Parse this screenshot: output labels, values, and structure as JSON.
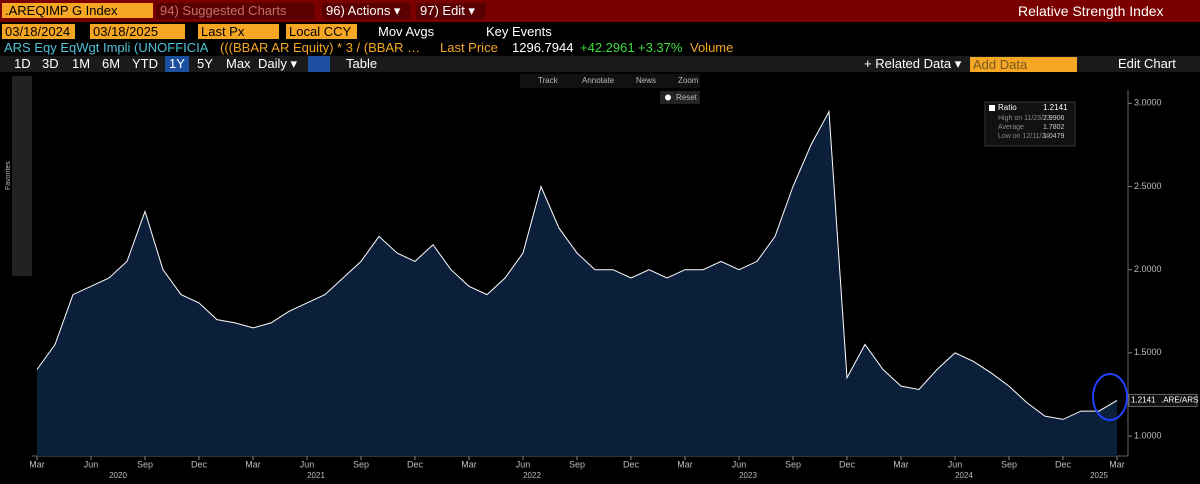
{
  "toolbar": {
    "security": ".AREQIMP G Index",
    "suggested": "94) Suggested Charts",
    "actions": "96) Actions ▾",
    "edit": "97) Edit ▾",
    "study": "Relative Strength Index"
  },
  "settings": {
    "start": "03/18/2024",
    "end": "03/18/2025",
    "field": "Last Px",
    "currency": "Local CCY",
    "mov_avgs": "Mov Avgs",
    "key_events": "Key Events"
  },
  "info": {
    "name": "ARS Eqy EqWgt Impli (UNOFFICIA",
    "formula": "(((BBAR AR Equity) * 3 / (BBAR …",
    "last_price_label": "Last Price",
    "last_price": "1296.7944",
    "change": "+42.2961",
    "change_pct": "+3.37%",
    "volume": "Volume"
  },
  "periods": [
    "1D",
    "3D",
    "1M",
    "6M",
    "YTD",
    "1Y",
    "5Y",
    "Max"
  ],
  "frequency": "Daily ▾",
  "table": "Table",
  "related": "+ Related Data ▾",
  "add_data": "Add Data",
  "edit_chart": "Edit Chart",
  "chart_tools": [
    "Track",
    "Annotate",
    "News",
    "Zoom"
  ],
  "reset": "Reset",
  "sidebar_label": "Favorites",
  "chart_data": {
    "type": "line",
    "x": [
      "2020-03",
      "2020-04",
      "2020-05",
      "2020-06",
      "2020-07",
      "2020-08",
      "2020-09",
      "2020-10",
      "2020-11",
      "2020-12",
      "2021-01",
      "2021-02",
      "2021-03",
      "2021-04",
      "2021-05",
      "2021-06",
      "2021-07",
      "2021-08",
      "2021-09",
      "2021-10",
      "2021-11",
      "2021-12",
      "2022-01",
      "2022-02",
      "2022-03",
      "2022-04",
      "2022-05",
      "2022-06",
      "2022-07",
      "2022-08",
      "2022-09",
      "2022-10",
      "2022-11",
      "2022-12",
      "2023-01",
      "2023-02",
      "2023-03",
      "2023-04",
      "2023-05",
      "2023-06",
      "2023-07",
      "2023-08",
      "2023-09",
      "2023-10",
      "2023-11",
      "2023-12",
      "2024-01",
      "2024-02",
      "2024-03",
      "2024-04",
      "2024-05",
      "2024-06",
      "2024-07",
      "2024-08",
      "2024-09",
      "2024-10",
      "2024-11",
      "2024-12",
      "2025-01",
      "2025-02",
      "2025-03"
    ],
    "series": [
      {
        "name": "Ratio",
        "color": "#ffffff",
        "fill": "#0c1f3a",
        "values": [
          1.4,
          1.55,
          1.85,
          1.9,
          1.95,
          2.05,
          2.35,
          2.0,
          1.85,
          1.8,
          1.7,
          1.68,
          1.65,
          1.68,
          1.75,
          1.8,
          1.85,
          1.95,
          2.05,
          2.2,
          2.1,
          2.05,
          2.15,
          2.0,
          1.9,
          1.85,
          1.95,
          2.1,
          2.5,
          2.25,
          2.1,
          2.0,
          2.0,
          1.95,
          2.0,
          1.95,
          2.0,
          2.0,
          2.05,
          2.0,
          2.05,
          2.2,
          2.5,
          2.75,
          2.95,
          1.35,
          1.55,
          1.4,
          1.3,
          1.28,
          1.4,
          1.5,
          1.45,
          1.38,
          1.3,
          1.2,
          1.12,
          1.1,
          1.15,
          1.15,
          1.2141
        ]
      }
    ],
    "ylim": [
      0.88,
      3.08
    ],
    "yticks": [
      {
        "value": 1,
        "label": "1.0000"
      },
      {
        "value": 1.5,
        "label": "1.5000"
      },
      {
        "value": 2,
        "label": "2.0000"
      },
      {
        "value": 2.5,
        "label": "2.5000"
      },
      {
        "value": 3,
        "label": "3.0000"
      }
    ],
    "xlim": [
      "2020-03",
      "2025-03"
    ],
    "xticks": [
      {
        "value": "2020-03",
        "label": "Mar"
      },
      {
        "value": "2020-06",
        "label": "Jun"
      },
      {
        "value": "2020-09",
        "label": "Sep"
      },
      {
        "value": "2020-12",
        "label": "Dec"
      },
      {
        "value": "2021-03",
        "label": "Mar"
      },
      {
        "value": "2021-06",
        "label": "Jun"
      },
      {
        "value": "2021-09",
        "label": "Sep"
      },
      {
        "value": "2021-12",
        "label": "Dec"
      },
      {
        "value": "2022-03",
        "label": "Mar"
      },
      {
        "value": "2022-06",
        "label": "Jun"
      },
      {
        "value": "2022-09",
        "label": "Sep"
      },
      {
        "value": "2022-12",
        "label": "Dec"
      },
      {
        "value": "2023-03",
        "label": "Mar"
      },
      {
        "value": "2023-06",
        "label": "Jun"
      },
      {
        "value": "2023-09",
        "label": "Sep"
      },
      {
        "value": "2023-12",
        "label": "Dec"
      },
      {
        "value": "2024-03",
        "label": "Mar"
      },
      {
        "value": "2024-06",
        "label": "Jun"
      },
      {
        "value": "2024-09",
        "label": "Sep"
      },
      {
        "value": "2024-12",
        "label": "Dec"
      },
      {
        "value": "2025-03",
        "label": "Mar"
      }
    ],
    "year_labels": [
      2020,
      2021,
      2022,
      2023,
      2024,
      2025
    ],
    "legend": [
      {
        "label": "High on 11/23/23",
        "value": 2.9906
      },
      {
        "label": "Average",
        "value": 1.7802
      },
      {
        "label": "Low on 12/11/24",
        "value": 1.0479
      }
    ],
    "last_value": 1.2141,
    "last_ticker": ".ARE/ARS"
  }
}
